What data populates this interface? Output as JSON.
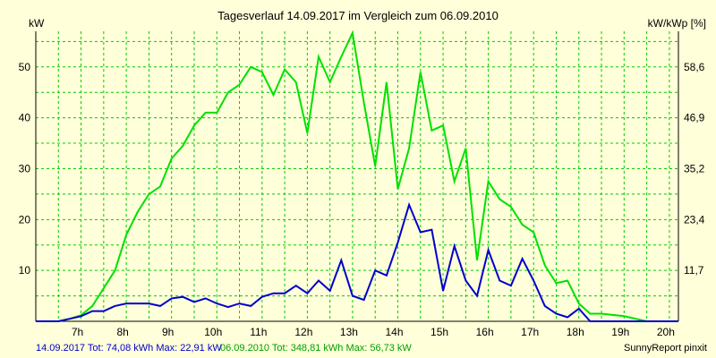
{
  "chart_data": {
    "type": "line",
    "title": "Tagesverlauf 14.09.2017 im Vergleich zum 06.09.2010",
    "ylabel_left": "kW",
    "ylabel_right": "kW/kWp [%]",
    "x_range_hours": [
      6.0,
      20.2
    ],
    "x_tick_labels": [
      "7h",
      "8h",
      "9h",
      "10h",
      "11h",
      "12h",
      "13h",
      "14h",
      "15h",
      "16h",
      "17h",
      "18h",
      "19h",
      "20h"
    ],
    "x_tick_hours": [
      7,
      8,
      9,
      10,
      11,
      12,
      13,
      14,
      15,
      16,
      17,
      18,
      19,
      20
    ],
    "ylim": [
      0,
      57
    ],
    "y_ticks_left": [
      10,
      20,
      30,
      40,
      50
    ],
    "y_tick_labels_left": [
      "10",
      "20",
      "30",
      "40",
      "50"
    ],
    "y_ticks_right_at_kw": [
      10,
      20,
      30,
      40,
      50
    ],
    "y_tick_labels_right": [
      "11,7",
      "23,4",
      "35,2",
      "46,9",
      "58,6"
    ],
    "grid": true,
    "series": [
      {
        "name": "14.09.2017",
        "color": "#0000cc",
        "x": [
          6.0,
          6.5,
          6.75,
          7.0,
          7.25,
          7.5,
          7.75,
          8.0,
          8.25,
          8.5,
          8.75,
          9.0,
          9.25,
          9.5,
          9.75,
          10.0,
          10.25,
          10.5,
          10.75,
          11.0,
          11.25,
          11.5,
          11.75,
          12.0,
          12.25,
          12.5,
          12.75,
          13.0,
          13.25,
          13.5,
          13.75,
          14.0,
          14.25,
          14.5,
          14.75,
          15.0,
          15.25,
          15.5,
          15.75,
          16.0,
          16.25,
          16.5,
          16.75,
          17.0,
          17.25,
          17.5,
          17.75,
          18.0,
          18.25,
          18.5,
          19.0,
          19.5,
          20.0,
          20.2
        ],
        "values": [
          0,
          0,
          0.5,
          1,
          2,
          2,
          3,
          3.5,
          3.5,
          3.5,
          3,
          4.5,
          4.8,
          3.8,
          4.5,
          3.5,
          2.8,
          3.5,
          3,
          4.8,
          5.5,
          5.5,
          7,
          5.5,
          8,
          6,
          12,
          5,
          4.2,
          10,
          9,
          15.5,
          22.9,
          17.5,
          18,
          6,
          14.8,
          8,
          5,
          14,
          8,
          7,
          12.3,
          8,
          3,
          1.5,
          0.8,
          2.5,
          0,
          0,
          0,
          0,
          0,
          0
        ]
      },
      {
        "name": "06.09.2010",
        "color": "#00e000",
        "x": [
          6.0,
          6.5,
          6.75,
          7.0,
          7.25,
          7.5,
          7.75,
          8.0,
          8.25,
          8.5,
          8.75,
          9.0,
          9.25,
          9.5,
          9.75,
          10.0,
          10.25,
          10.5,
          10.75,
          11.0,
          11.25,
          11.5,
          11.75,
          12.0,
          12.25,
          12.5,
          12.75,
          13.0,
          13.25,
          13.5,
          13.75,
          14.0,
          14.25,
          14.5,
          14.75,
          15.0,
          15.25,
          15.5,
          15.75,
          16.0,
          16.25,
          16.5,
          16.75,
          17.0,
          17.25,
          17.5,
          17.75,
          18.0,
          18.25,
          18.5,
          19.0,
          19.5,
          20.0,
          20.2
        ],
        "values": [
          0,
          0,
          0.5,
          1.2,
          3,
          6.5,
          10,
          17,
          21.5,
          25,
          26.5,
          32,
          34.5,
          38.5,
          41,
          41,
          45,
          46.5,
          50,
          49,
          44.5,
          49.5,
          47,
          37,
          52,
          47,
          52,
          56.7,
          43,
          30.5,
          47,
          26,
          34,
          49,
          37.5,
          38.5,
          27.5,
          34,
          12,
          27.5,
          24,
          22.5,
          19,
          17.5,
          11,
          7.5,
          8,
          3.5,
          1.5,
          1.5,
          1,
          0,
          0,
          0
        ]
      }
    ],
    "footer": {
      "series1_text": "14.09.2017 Tot: 74,08 kWh Max: 22,91 kW",
      "series2_text": "06.09.2010 Tot: 348,81 kWh Max: 56,73 kW",
      "credit": "SunnyReport pinxit"
    }
  },
  "colors": {
    "background": "#ffffd9",
    "grid": "#00cc00",
    "axis": "#000000",
    "footer_series1": "#0000cc",
    "footer_series2": "#00a000"
  }
}
